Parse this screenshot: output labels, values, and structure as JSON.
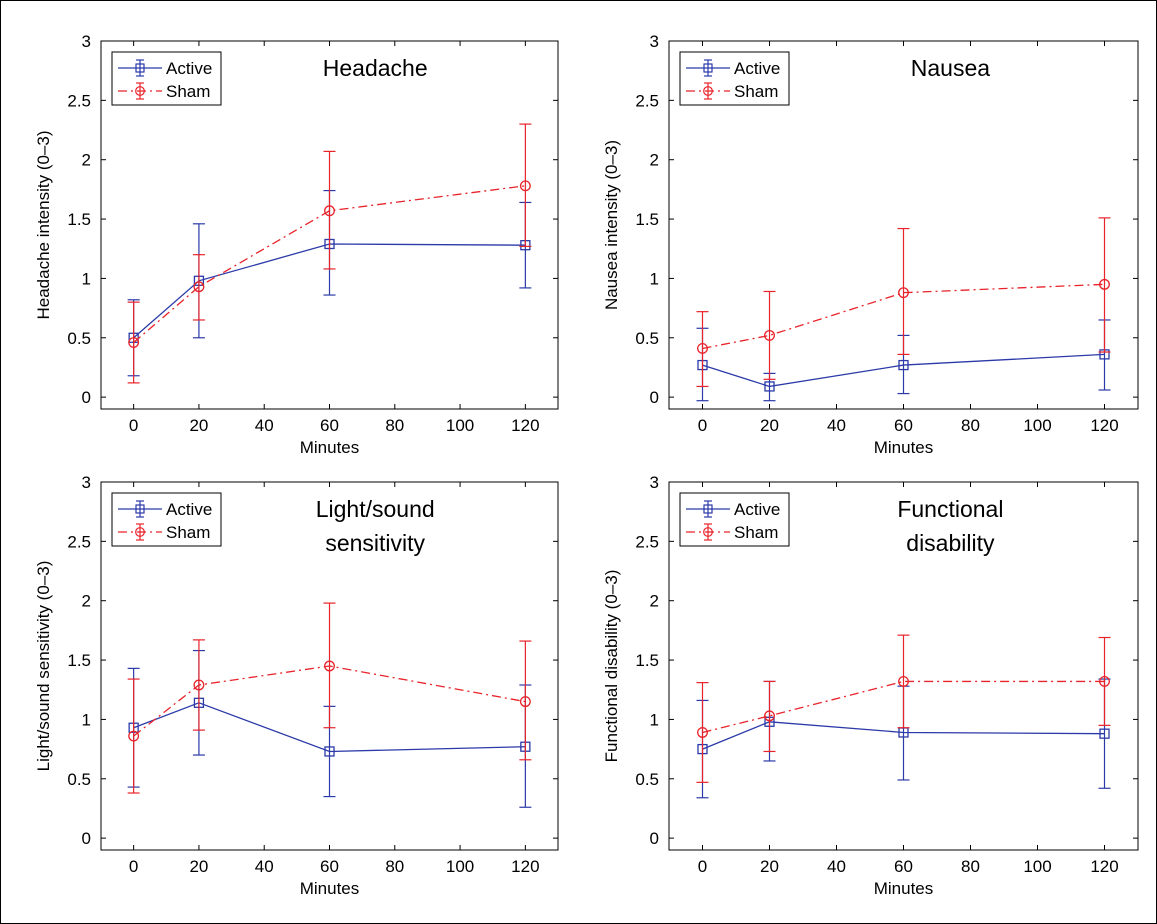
{
  "colors": {
    "active": "#2b3aa8",
    "sham": "#e8232a",
    "axis": "#000000"
  },
  "chart_data": [
    {
      "type": "line",
      "title": "Headache",
      "xlabel": "Minutes",
      "ylabel": "Headache intensity (0–3)",
      "xlim": [
        -10,
        130
      ],
      "ylim": [
        -0.1,
        3
      ],
      "xticks": [
        0,
        20,
        40,
        60,
        80,
        100,
        120
      ],
      "yticks": [
        0,
        0.5,
        1,
        1.5,
        2,
        2.5,
        3
      ],
      "legend": "top-left",
      "x": [
        0,
        20,
        60,
        120
      ],
      "series": [
        {
          "name": "Active",
          "values": [
            0.5,
            0.98,
            1.29,
            1.28
          ],
          "lower": [
            0.18,
            0.5,
            0.86,
            0.92
          ],
          "upper": [
            0.82,
            1.46,
            1.74,
            1.64
          ]
        },
        {
          "name": "Sham",
          "values": [
            0.46,
            0.93,
            1.57,
            1.78
          ],
          "lower": [
            0.12,
            0.65,
            1.08,
            1.27
          ],
          "upper": [
            0.8,
            1.2,
            2.07,
            2.3
          ]
        }
      ]
    },
    {
      "type": "line",
      "title": "Nausea",
      "xlabel": "Minutes",
      "ylabel": "Nausea intensity (0–3)",
      "xlim": [
        -10,
        130
      ],
      "ylim": [
        -0.1,
        3
      ],
      "xticks": [
        0,
        20,
        40,
        60,
        80,
        100,
        120
      ],
      "yticks": [
        0,
        0.5,
        1,
        1.5,
        2,
        2.5,
        3
      ],
      "legend": "top-left",
      "x": [
        0,
        20,
        60,
        120
      ],
      "series": [
        {
          "name": "Active",
          "values": [
            0.27,
            0.09,
            0.27,
            0.36
          ],
          "lower": [
            -0.03,
            -0.03,
            0.03,
            0.06
          ],
          "upper": [
            0.58,
            0.2,
            0.52,
            0.65
          ]
        },
        {
          "name": "Sham",
          "values": [
            0.41,
            0.52,
            0.88,
            0.95
          ],
          "lower": [
            0.09,
            0.15,
            0.36,
            0.38
          ],
          "upper": [
            0.72,
            0.89,
            1.42,
            1.51
          ]
        }
      ]
    },
    {
      "type": "line",
      "title": "Light/sound sensitivity",
      "title_lines": [
        "Light/sound",
        "sensitivity"
      ],
      "xlabel": "Minutes",
      "ylabel": "Light/sound sensitivity (0–3)",
      "xlim": [
        -10,
        130
      ],
      "ylim": [
        -0.1,
        3
      ],
      "xticks": [
        0,
        20,
        40,
        60,
        80,
        100,
        120
      ],
      "yticks": [
        0,
        0.5,
        1,
        1.5,
        2,
        2.5,
        3
      ],
      "legend": "top-left",
      "x": [
        0,
        20,
        60,
        120
      ],
      "series": [
        {
          "name": "Active",
          "values": [
            0.93,
            1.14,
            0.73,
            0.77
          ],
          "lower": [
            0.43,
            0.7,
            0.35,
            0.26
          ],
          "upper": [
            1.43,
            1.58,
            1.11,
            1.29
          ]
        },
        {
          "name": "Sham",
          "values": [
            0.86,
            1.29,
            1.45,
            1.15
          ],
          "lower": [
            0.38,
            0.91,
            0.93,
            0.66
          ],
          "upper": [
            1.34,
            1.67,
            1.98,
            1.66
          ]
        }
      ]
    },
    {
      "type": "line",
      "title": "Functional disability",
      "title_lines": [
        "Functional",
        "disability"
      ],
      "xlabel": "Minutes",
      "ylabel": "Functional disability (0–3)",
      "xlim": [
        -10,
        130
      ],
      "ylim": [
        -0.1,
        3
      ],
      "xticks": [
        0,
        20,
        40,
        60,
        80,
        100,
        120
      ],
      "yticks": [
        0,
        0.5,
        1,
        1.5,
        2,
        2.5,
        3
      ],
      "legend": "top-left",
      "x": [
        0,
        20,
        60,
        120
      ],
      "series": [
        {
          "name": "Active",
          "values": [
            0.75,
            0.98,
            0.89,
            0.88
          ],
          "lower": [
            0.34,
            0.65,
            0.49,
            0.42
          ],
          "upper": [
            1.16,
            1.32,
            1.28,
            1.34
          ]
        },
        {
          "name": "Sham",
          "values": [
            0.89,
            1.03,
            1.32,
            1.32
          ],
          "lower": [
            0.47,
            0.73,
            0.93,
            0.95
          ],
          "upper": [
            1.31,
            1.32,
            1.71,
            1.69
          ]
        }
      ]
    }
  ]
}
